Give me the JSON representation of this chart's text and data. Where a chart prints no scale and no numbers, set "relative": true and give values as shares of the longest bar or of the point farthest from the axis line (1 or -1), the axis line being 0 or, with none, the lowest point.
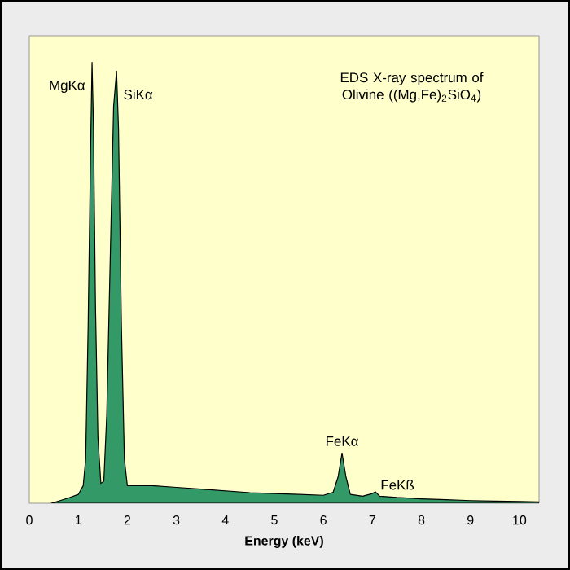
{
  "chart_data": {
    "type": "area",
    "relative": true,
    "title": "EDS X-ray spectrum of Olivine ((Mg,Fe)$_{2}$SiO$_{4}$)",
    "xlabel": "Energy (keV)",
    "xlim": [
      0,
      10.4
    ],
    "xticks": [
      0,
      1,
      2,
      3,
      4,
      5,
      6,
      7,
      8,
      9,
      10
    ],
    "x": [
      0.45,
      0.6,
      0.8,
      1.0,
      1.1,
      1.15,
      1.2,
      1.25,
      1.28,
      1.31,
      1.35,
      1.4,
      1.46,
      1.52,
      1.58,
      1.65,
      1.72,
      1.78,
      1.82,
      1.88,
      1.94,
      2.0,
      2.5,
      3.0,
      3.5,
      4.0,
      4.5,
      5.0,
      5.5,
      6.0,
      6.2,
      6.3,
      6.38,
      6.46,
      6.55,
      6.8,
      7.0,
      7.06,
      7.15,
      7.5,
      8.0,
      8.5,
      9.0,
      9.5,
      10.0,
      10.4
    ],
    "series": [
      {
        "color": "#339966",
        "values": [
          0,
          0.005,
          0.012,
          0.02,
          0.04,
          0.1,
          0.4,
          0.8,
          1.0,
          0.85,
          0.45,
          0.15,
          0.045,
          0.05,
          0.2,
          0.55,
          0.9,
          0.98,
          0.85,
          0.4,
          0.1,
          0.04,
          0.04,
          0.036,
          0.032,
          0.028,
          0.024,
          0.022,
          0.02,
          0.018,
          0.025,
          0.06,
          0.114,
          0.06,
          0.02,
          0.016,
          0.022,
          0.026,
          0.016,
          0.013,
          0.01,
          0.008,
          0.006,
          0.005,
          0.004,
          0.003
        ]
      }
    ],
    "annotations": [
      {
        "text": "MgKα",
        "x": 1.28,
        "y": 1.0
      },
      {
        "text": "SiKα",
        "x": 1.78,
        "y": 0.98
      },
      {
        "text": "FeKα",
        "x": 6.38,
        "y": 0.114
      },
      {
        "text": "FeKß",
        "x": 7.06,
        "y": 0.026
      }
    ]
  }
}
